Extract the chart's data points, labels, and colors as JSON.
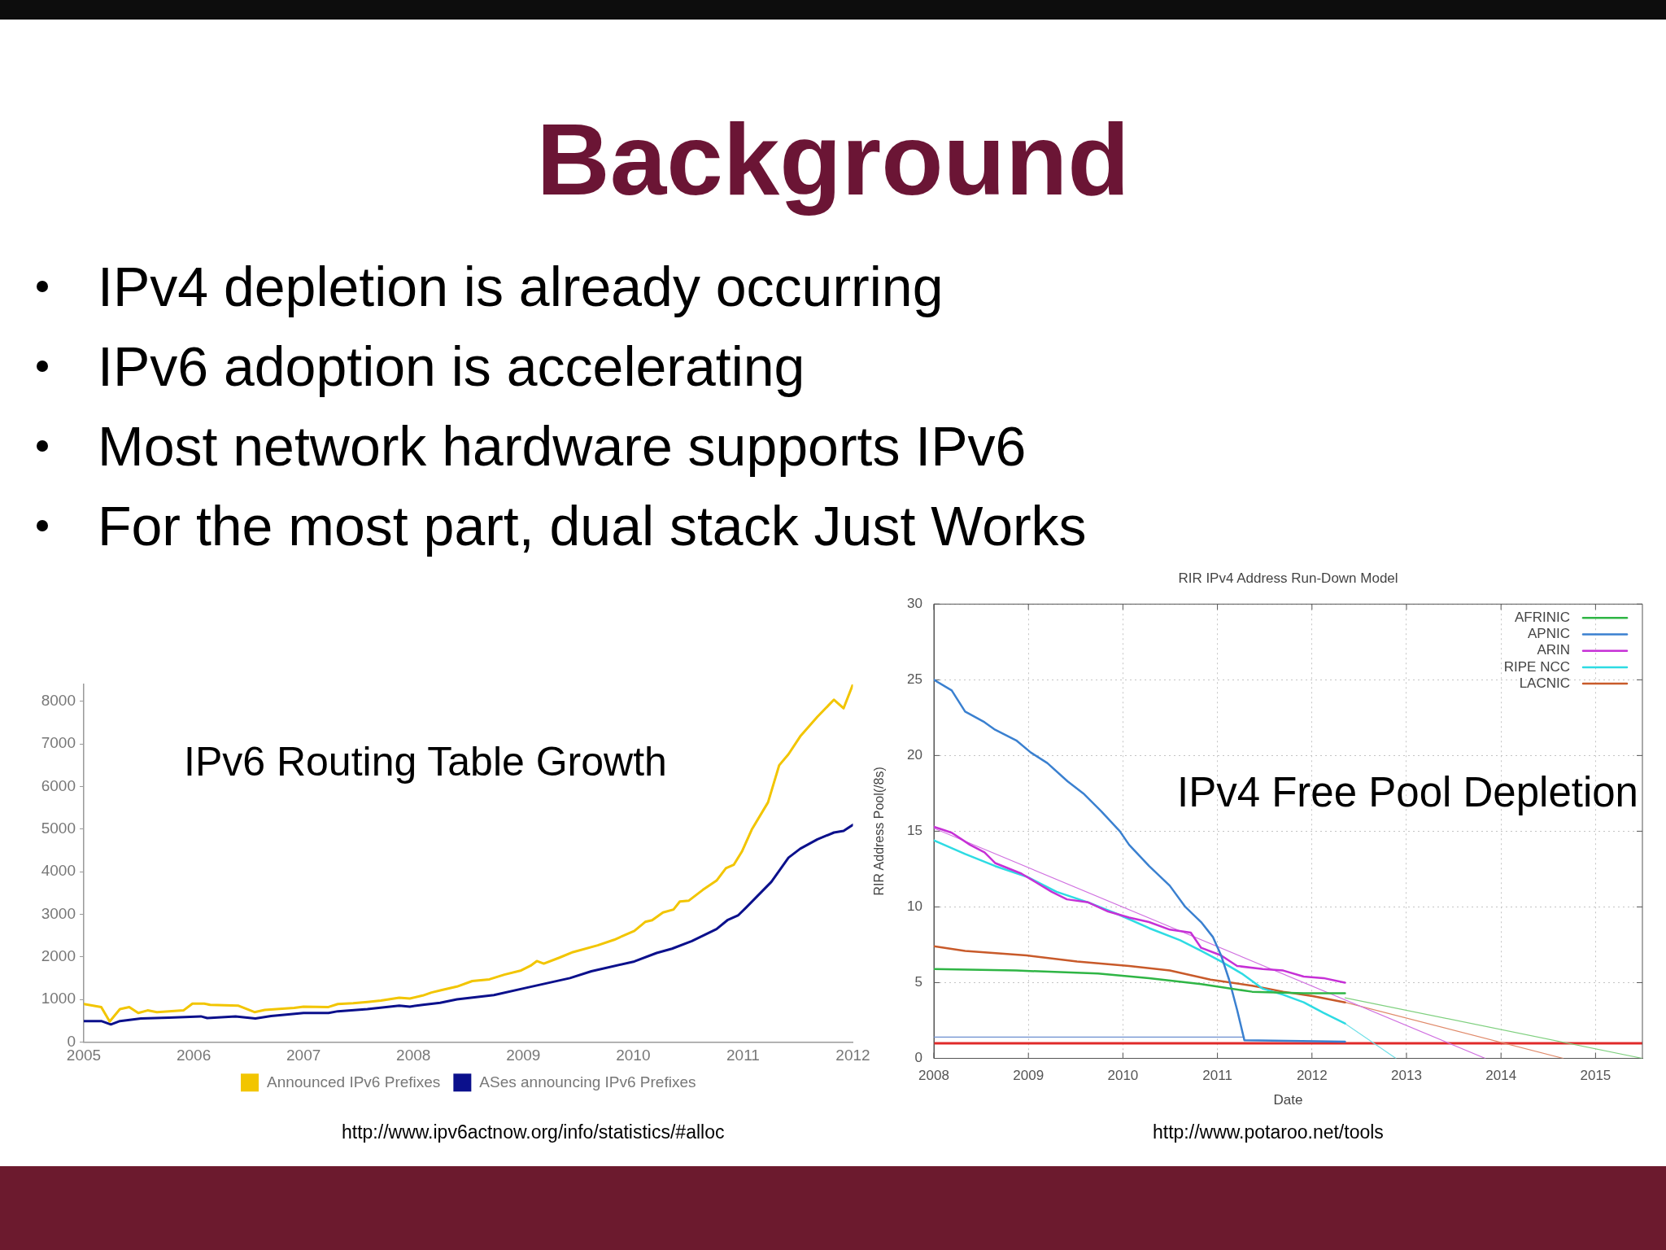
{
  "chart_data": [
    {
      "type": "other",
      "title": "Background",
      "annotations": [
        "IPv4 depletion is already occurring",
        "IPv6 adoption is accelerating",
        "Most network hardware supports IPv6",
        "For the most part, dual stack Just Works"
      ]
    },
    {
      "type": "line",
      "title": "IPv6 Routing Table Growth",
      "xlim": [
        "2005",
        "2012"
      ],
      "xticks": [
        "2005",
        "2006",
        "2007",
        "2008",
        "2009",
        "2010",
        "2011",
        "2012"
      ],
      "ylim": [
        0,
        8400
      ],
      "yticks": [
        0,
        1000,
        2000,
        3000,
        4000,
        5000,
        6000,
        7000,
        8000
      ],
      "legend": "bottom",
      "series": [
        {
          "name": "Announced IPv6 Prefixes",
          "color": "#f2c500",
          "x": [
            "2005-01-01",
            "2005-02-28",
            "2005-03-28",
            "2005-05-01",
            "2005-06-01",
            "2005-07-01",
            "2005-08-01",
            "2005-09-01",
            "2005-10-10",
            "2005-11-28",
            "2005-12-28",
            "2006-02-05",
            "2006-02-25",
            "2006-05-30",
            "2006-07-22",
            "2006-08-25",
            "2006-12-01",
            "2007-01-01",
            "2007-03-25",
            "2007-04-25",
            "2007-06-15",
            "2007-08-01",
            "2007-09-15",
            "2007-11-15",
            "2007-12-20",
            "2008-02-01",
            "2008-03-01",
            "2008-04-05",
            "2008-05-25",
            "2008-07-15",
            "2008-09-10",
            "2008-10-30",
            "2008-12-25",
            "2009-01-25",
            "2009-02-15",
            "2009-03-10",
            "2009-05-01",
            "2009-06-15",
            "2009-09-05",
            "2009-10-30",
            "2010-01-05",
            "2010-02-10",
            "2010-03-05",
            "2010-04-10",
            "2010-05-15",
            "2010-06-05",
            "2010-07-05",
            "2010-08-20",
            "2010-10-05",
            "2010-11-05",
            "2010-12-01",
            "2010-12-28",
            "2011-01-30",
            "2011-03-25",
            "2011-05-01",
            "2011-06-01",
            "2011-07-10",
            "2011-09-05",
            "2011-10-30",
            "2011-12-01",
            "2012-01-01"
          ],
          "values": [
            890,
            820,
            480,
            770,
            820,
            680,
            740,
            700,
            720,
            740,
            900,
            900,
            870,
            850,
            700,
            750,
            800,
            830,
            820,
            890,
            910,
            940,
            970,
            1040,
            1020,
            1090,
            1160,
            1220,
            1300,
            1430,
            1470,
            1580,
            1680,
            1790,
            1900,
            1840,
            1980,
            2110,
            2270,
            2400,
            2610,
            2820,
            2860,
            3040,
            3110,
            3300,
            3320,
            3570,
            3790,
            4080,
            4160,
            4470,
            4990,
            5630,
            6500,
            6760,
            7180,
            7640,
            8040,
            7840,
            8400
          ]
        },
        {
          "name": "ASes announcing IPv6 Prefixes",
          "color": "#0b108c",
          "x": [
            "2005-01-01",
            "2005-02-28",
            "2005-04-01",
            "2005-05-01",
            "2005-07-10",
            "2005-10-10",
            "2006-01-25",
            "2006-02-15",
            "2006-05-20",
            "2006-07-25",
            "2006-09-15",
            "2007-01-01",
            "2007-03-25",
            "2007-04-25",
            "2007-08-01",
            "2007-11-15",
            "2007-12-20",
            "2008-02-01",
            "2008-03-30",
            "2008-05-25",
            "2008-09-25",
            "2009-01-10",
            "2009-06-05",
            "2009-08-15",
            "2010-01-05",
            "2010-03-20",
            "2010-05-10",
            "2010-07-15",
            "2010-10-05",
            "2010-11-10",
            "2010-12-15",
            "2011-01-10",
            "2011-04-05",
            "2011-06-01",
            "2011-07-10",
            "2011-09-05",
            "2011-10-30",
            "2011-12-01",
            "2012-01-01"
          ],
          "values": [
            490,
            490,
            410,
            490,
            550,
            570,
            600,
            560,
            600,
            550,
            610,
            680,
            680,
            720,
            770,
            850,
            830,
            870,
            920,
            1000,
            1100,
            1270,
            1500,
            1660,
            1890,
            2090,
            2190,
            2370,
            2650,
            2860,
            2970,
            3150,
            3760,
            4330,
            4540,
            4760,
            4920,
            4960,
            5100
          ]
        }
      ],
      "annotations": [
        "http://www.ipv6actnow.org/info/statistics/#alloc"
      ]
    },
    {
      "type": "line",
      "title": "RIR IPv4 Address Run-Down Model",
      "subtitle": "IPv4 Free Pool Depletion",
      "xlabel": "Date",
      "ylabel": "RIR Address Pool(/8s)",
      "xlim": [
        "2008",
        "2015-07"
      ],
      "xticks": [
        "2008",
        "2009",
        "2010",
        "2011",
        "2012",
        "2013",
        "2014",
        "2015"
      ],
      "ylim": [
        0,
        30
      ],
      "yticks": [
        0,
        5,
        10,
        15,
        20,
        25,
        30
      ],
      "grid": true,
      "legend": "top right",
      "ref_lines": [
        {
          "axis": "y",
          "value": 1,
          "color": "#e02a2a"
        }
      ],
      "series": [
        {
          "name": "AFRINIC",
          "color": "#2fb545",
          "x": [
            "2008-01-01",
            "2008-11-15",
            "2009-09-27",
            "2010-04-12",
            "2010-10-30",
            "2011-05-15",
            "2011-11-30",
            "2012-05-08"
          ],
          "values": [
            5.9,
            5.8,
            5.6,
            5.3,
            4.9,
            4.4,
            4.3,
            4.3
          ]
        },
        {
          "name": "APNIC",
          "color": "#3a80d0",
          "x": [
            "2008-01-01",
            "2008-03-10",
            "2008-05-01",
            "2008-07-15",
            "2008-08-25",
            "2008-11-15",
            "2009-01-10",
            "2009-03-15",
            "2009-06-01",
            "2009-08-01",
            "2009-10-10",
            "2009-12-20",
            "2010-01-25",
            "2010-04-12",
            "2010-07-01",
            "2010-08-30",
            "2010-10-30",
            "2010-12-15",
            "2011-01-15",
            "2011-02-15",
            "2011-03-18",
            "2011-04-15",
            "2012-05-08"
          ],
          "values": [
            25.0,
            24.3,
            22.9,
            22.2,
            21.7,
            21.0,
            20.2,
            19.5,
            18.3,
            17.5,
            16.3,
            15.0,
            14.1,
            12.7,
            11.4,
            10.0,
            9.0,
            8.0,
            6.8,
            5.2,
            3.2,
            1.2,
            1.1
          ]
        },
        {
          "name": "ARIN",
          "color": "#c630d6",
          "x": [
            "2008-01-01",
            "2008-03-10",
            "2008-05-20",
            "2008-07-15",
            "2008-08-25",
            "2008-12-05",
            "2009-04-01",
            "2009-05-30",
            "2009-08-20",
            "2009-11-05",
            "2010-01-25",
            "2010-04-12",
            "2010-07-01",
            "2010-09-20",
            "2010-10-30",
            "2011-01-15",
            "2011-03-18",
            "2011-06-25",
            "2011-09-12",
            "2011-11-30",
            "2012-02-15",
            "2012-05-08"
          ],
          "values": [
            15.3,
            14.9,
            14.1,
            13.6,
            12.9,
            12.2,
            11.0,
            10.5,
            10.3,
            9.7,
            9.3,
            9.0,
            8.5,
            8.3,
            7.3,
            6.8,
            6.1,
            5.9,
            5.8,
            5.4,
            5.3,
            5.0
          ]
        },
        {
          "name": "RIPE NCC",
          "color": "#2edbe3",
          "x": [
            "2008-01-01",
            "2008-05-01",
            "2008-08-25",
            "2008-12-25",
            "2009-04-20",
            "2009-08-20",
            "2009-12-15",
            "2010-04-12",
            "2010-08-10",
            "2010-10-30",
            "2011-01-15",
            "2011-04-05",
            "2011-06-25",
            "2011-09-12",
            "2011-11-30",
            "2012-02-15",
            "2012-05-08"
          ],
          "values": [
            14.4,
            13.5,
            12.7,
            12.0,
            11.0,
            10.3,
            9.5,
            8.6,
            7.8,
            7.1,
            6.4,
            5.6,
            4.6,
            4.2,
            3.7,
            3.0,
            2.3
          ]
        },
        {
          "name": "LACNIC",
          "color": "#c85a2a",
          "x": [
            "2008-01-01",
            "2008-05-01",
            "2008-12-25",
            "2009-07-08",
            "2010-01-25",
            "2010-07-01",
            "2010-12-05",
            "2011-05-15",
            "2011-09-12",
            "2012-01-08",
            "2012-05-08"
          ],
          "values": [
            7.4,
            7.1,
            6.8,
            6.4,
            6.1,
            5.8,
            5.2,
            4.8,
            4.4,
            4.1,
            3.7
          ]
        },
        {
          "color": "#6c8fd0",
          "x": [
            "2008-01-01",
            "2011-04-15"
          ],
          "values": [
            1.4,
            1.4
          ]
        },
        {
          "color": "#d070e0",
          "x": [
            "2008-01-01",
            "2013-11-01"
          ],
          "values": [
            15.2,
            0
          ]
        },
        {
          "color": "#70e0e8",
          "x": [
            "2012-05-08",
            "2012-11-21"
          ],
          "values": [
            2.3,
            0
          ]
        },
        {
          "color": "#e08a6a",
          "x": [
            "2012-05-08",
            "2014-08-29"
          ],
          "values": [
            3.7,
            0
          ]
        },
        {
          "color": "#7fd07f",
          "x": [
            "2012-05-08",
            "2015-07"
          ],
          "values": [
            4.0,
            0
          ]
        }
      ],
      "annotations": [
        "http://www.potaroo.net/tools"
      ]
    }
  ]
}
